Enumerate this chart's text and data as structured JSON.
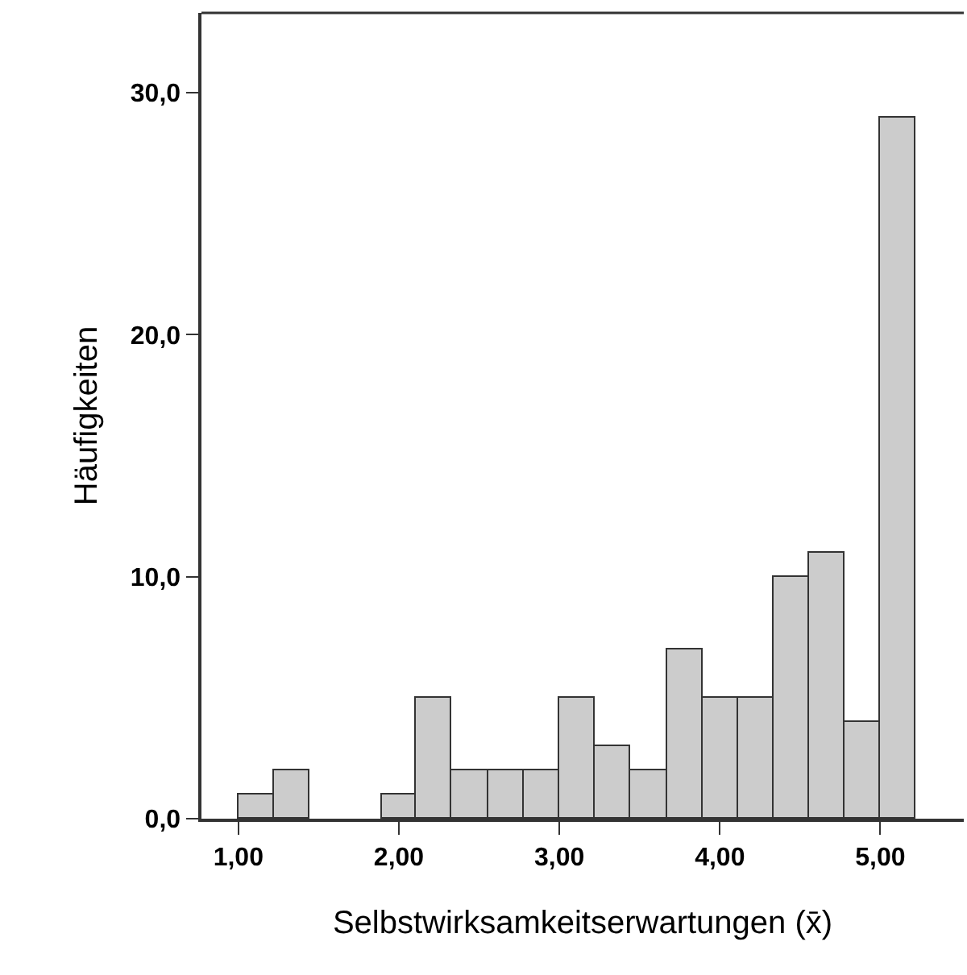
{
  "chart_data": {
    "type": "histogram",
    "xlabel": "Selbstwirksamkeitserwartungen (x̄)",
    "ylabel": "Häufigkeiten",
    "bins": [
      1.0,
      1.22,
      1.44,
      1.89,
      2.11,
      2.33,
      2.56,
      2.78,
      3.0,
      3.22,
      3.44,
      3.67,
      3.89,
      4.11,
      4.33,
      4.56,
      4.78,
      5.0,
      5.22
    ],
    "values": [
      1,
      2,
      0,
      1,
      5,
      2,
      2,
      2,
      5,
      3,
      2,
      7,
      5,
      5,
      10,
      11,
      4,
      29
    ],
    "color": "#cccccc",
    "xlim": [
      0.77,
      5.52
    ],
    "xticks": [
      {
        "value": 1,
        "label": "1,00"
      },
      {
        "value": 2,
        "label": "2,00"
      },
      {
        "value": 3,
        "label": "3,00"
      },
      {
        "value": 4,
        "label": "4,00"
      },
      {
        "value": 5,
        "label": "5,00"
      }
    ],
    "ylim": [
      0,
      33.3
    ],
    "yticks": [
      {
        "value": 0,
        "label": "0,0"
      },
      {
        "value": 10,
        "label": "10,0"
      },
      {
        "value": 20,
        "label": "20,0"
      },
      {
        "value": 30,
        "label": "30,0"
      }
    ]
  }
}
